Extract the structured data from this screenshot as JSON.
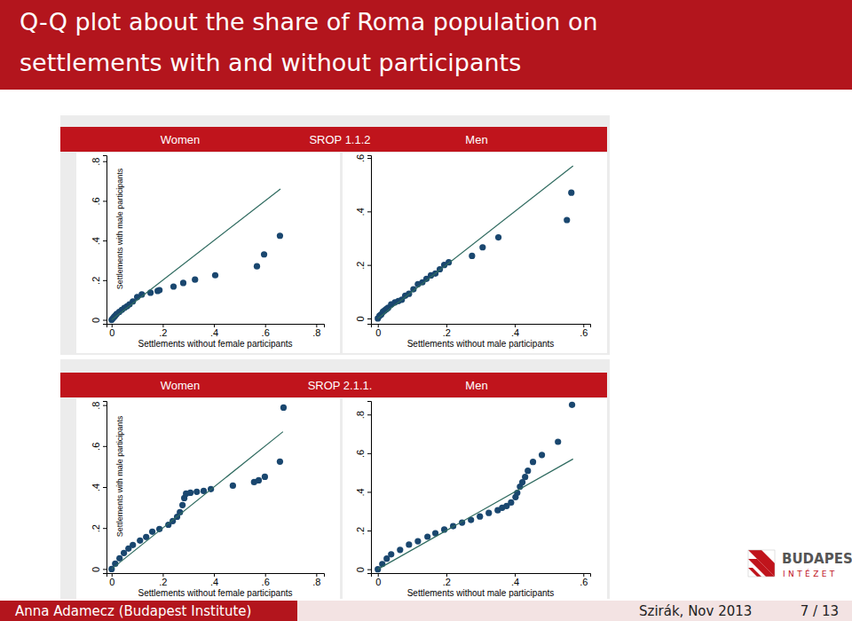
{
  "slide": {
    "title": [
      "Q-Q plot about the share of Roma population on",
      "settlements with and without participants"
    ],
    "panels": [
      {
        "labels": [
          "Women",
          "SROP 1.1.2",
          "Men"
        ]
      },
      {
        "labels": [
          "Women",
          "SROP 2.1.1.",
          "Men"
        ]
      }
    ],
    "footer_left": "Anna Adamecz (Budapest Institute)",
    "footer_right": [
      "Szirák, Nov 2013",
      "7 / 13"
    ],
    "logo": [
      "BUDAPEST",
      "INTÉZET"
    ]
  },
  "chart_data": [
    {
      "type": "scatter",
      "x_label": "Settlements without female participants",
      "y_label": "Settlements with male participants",
      "xlim": [
        -0.02,
        0.83
      ],
      "ylim": [
        -0.02,
        0.83
      ],
      "xticks": [
        0,
        {
          "value": 0.2,
          "label": ".2"
        },
        {
          "value": 0.4,
          "label": ".4"
        },
        {
          "value": 0.6,
          "label": ".6"
        },
        {
          "value": 0.8,
          "label": ".8"
        }
      ],
      "yticks": [
        0,
        {
          "value": 0.2,
          "label": ".2"
        },
        {
          "value": 0.4,
          "label": ".4"
        },
        {
          "value": 0.6,
          "label": ".6"
        },
        {
          "value": 0.8,
          "label": ".8"
        }
      ],
      "series": [
        {
          "type": "scatter",
          "marker": "circle",
          "color": "#1a476f",
          "x": [
            0,
            0.005,
            0.01,
            0.015,
            0.02,
            0.03,
            0.04,
            0.05,
            0.06,
            0.07,
            0.083,
            0.1,
            0.118,
            0.152,
            0.18,
            0.187,
            0.242,
            0.28,
            0.326,
            0.405,
            0.568,
            0.596,
            0.658
          ],
          "values": [
            0,
            0.008,
            0.015,
            0.022,
            0.03,
            0.04,
            0.05,
            0.06,
            0.068,
            0.078,
            0.093,
            0.115,
            0.128,
            0.137,
            0.146,
            0.15,
            0.168,
            0.186,
            0.203,
            0.225,
            0.27,
            0.33,
            0.424
          ]
        },
        {
          "type": "line",
          "line_style": "solid",
          "color": "#2e6a5f",
          "x": [
            0,
            0.66
          ],
          "values": [
            0,
            0.66
          ]
        }
      ]
    },
    {
      "type": "scatter",
      "x_label": "Settlements without male participants",
      "xlim": [
        -0.02,
        0.62
      ],
      "ylim": [
        -0.02,
        0.61
      ],
      "xticks": [
        0,
        {
          "value": 0.2,
          "label": ".2"
        },
        {
          "value": 0.4,
          "label": ".4"
        },
        {
          "value": 0.6,
          "label": ".6"
        }
      ],
      "yticks": [
        0,
        {
          "value": 0.2,
          "label": ".2"
        },
        {
          "value": 0.4,
          "label": ".4"
        },
        {
          "value": 0.6,
          "label": ".6"
        }
      ],
      "series": [
        {
          "type": "scatter",
          "marker": "circle",
          "color": "#1a476f",
          "x": [
            0,
            0.005,
            0.01,
            0.015,
            0.02,
            0.025,
            0.03,
            0.039,
            0.05,
            0.06,
            0.07,
            0.08,
            0.091,
            0.104,
            0.117,
            0.13,
            0.142,
            0.155,
            0.168,
            0.181,
            0.194,
            0.207,
            0.275,
            0.306,
            0.352,
            0.552,
            0.565
          ],
          "values": [
            0,
            0.01,
            0.015,
            0.025,
            0.03,
            0.035,
            0.04,
            0.053,
            0.06,
            0.065,
            0.07,
            0.085,
            0.092,
            0.109,
            0.128,
            0.135,
            0.148,
            0.161,
            0.168,
            0.184,
            0.2,
            0.21,
            0.234,
            0.266,
            0.303,
            0.368,
            0.47
          ]
        },
        {
          "type": "line",
          "line_style": "solid",
          "color": "#2e6a5f",
          "x": [
            0,
            0.57
          ],
          "values": [
            0,
            0.57
          ]
        }
      ]
    },
    {
      "type": "scatter",
      "x_label": "Settlements without female participants",
      "y_label": "Settlements with male participants",
      "xlim": [
        -0.02,
        0.83
      ],
      "ylim": [
        -0.02,
        0.82
      ],
      "xticks": [
        0,
        {
          "value": 0.2,
          "label": ".2"
        },
        {
          "value": 0.4,
          "label": ".4"
        },
        {
          "value": 0.6,
          "label": ".6"
        },
        {
          "value": 0.8,
          "label": ".8"
        }
      ],
      "yticks": [
        0,
        {
          "value": 0.2,
          "label": ".2"
        },
        {
          "value": 0.4,
          "label": ".4"
        },
        {
          "value": 0.6,
          "label": ".6"
        },
        {
          "value": 0.8,
          "label": ".8"
        }
      ],
      "series": [
        {
          "type": "scatter",
          "marker": "circle",
          "color": "#1a476f",
          "x": [
            0,
            0.014,
            0.031,
            0.048,
            0.066,
            0.083,
            0.111,
            0.135,
            0.159,
            0.187,
            0.222,
            0.239,
            0.256,
            0.267,
            0.277,
            0.284,
            0.291,
            0.308,
            0.333,
            0.36,
            0.388,
            0.474,
            0.557,
            0.575,
            0.599,
            0.658,
            0.672
          ],
          "values": [
            0,
            0.026,
            0.052,
            0.078,
            0.1,
            0.117,
            0.139,
            0.156,
            0.182,
            0.195,
            0.216,
            0.234,
            0.255,
            0.277,
            0.312,
            0.346,
            0.368,
            0.372,
            0.377,
            0.381,
            0.39,
            0.407,
            0.424,
            0.433,
            0.45,
            0.524,
            0.788
          ]
        },
        {
          "type": "line",
          "line_style": "solid",
          "color": "#2e6a5f",
          "x": [
            0,
            0.67
          ],
          "values": [
            0,
            0.67
          ]
        }
      ]
    },
    {
      "type": "scatter",
      "x_label": "Settlements without male participants",
      "xlim": [
        -0.02,
        0.62
      ],
      "ylim": [
        -0.02,
        0.87
      ],
      "xticks": [
        0,
        {
          "value": 0.2,
          "label": ".2"
        },
        {
          "value": 0.4,
          "label": ".4"
        },
        {
          "value": 0.6,
          "label": ".6"
        }
      ],
      "yticks": [
        0,
        {
          "value": 0.2,
          "label": ".2"
        },
        {
          "value": 0.4,
          "label": ".4"
        },
        {
          "value": 0.6,
          "label": ".6"
        },
        {
          "value": 0.8,
          "label": ".8"
        }
      ],
      "series": [
        {
          "type": "scatter",
          "marker": "circle",
          "color": "#1a476f",
          "x": [
            0,
            0.013,
            0.026,
            0.039,
            0.065,
            0.091,
            0.117,
            0.145,
            0.168,
            0.194,
            0.22,
            0.246,
            0.272,
            0.298,
            0.324,
            0.35,
            0.363,
            0.376,
            0.389,
            0.402,
            0.407,
            0.415,
            0.422,
            0.43,
            0.438,
            0.453,
            0.479,
            0.526,
            0.567
          ],
          "values": [
            0,
            0.027,
            0.055,
            0.077,
            0.1,
            0.127,
            0.145,
            0.168,
            0.186,
            0.205,
            0.223,
            0.241,
            0.255,
            0.273,
            0.291,
            0.305,
            0.318,
            0.327,
            0.345,
            0.373,
            0.395,
            0.427,
            0.45,
            0.477,
            0.509,
            0.555,
            0.591,
            0.659,
            0.85
          ]
        },
        {
          "type": "line",
          "line_style": "solid",
          "color": "#2e6a5f",
          "x": [
            0,
            0.57
          ],
          "values": [
            0,
            0.57
          ]
        }
      ]
    }
  ]
}
